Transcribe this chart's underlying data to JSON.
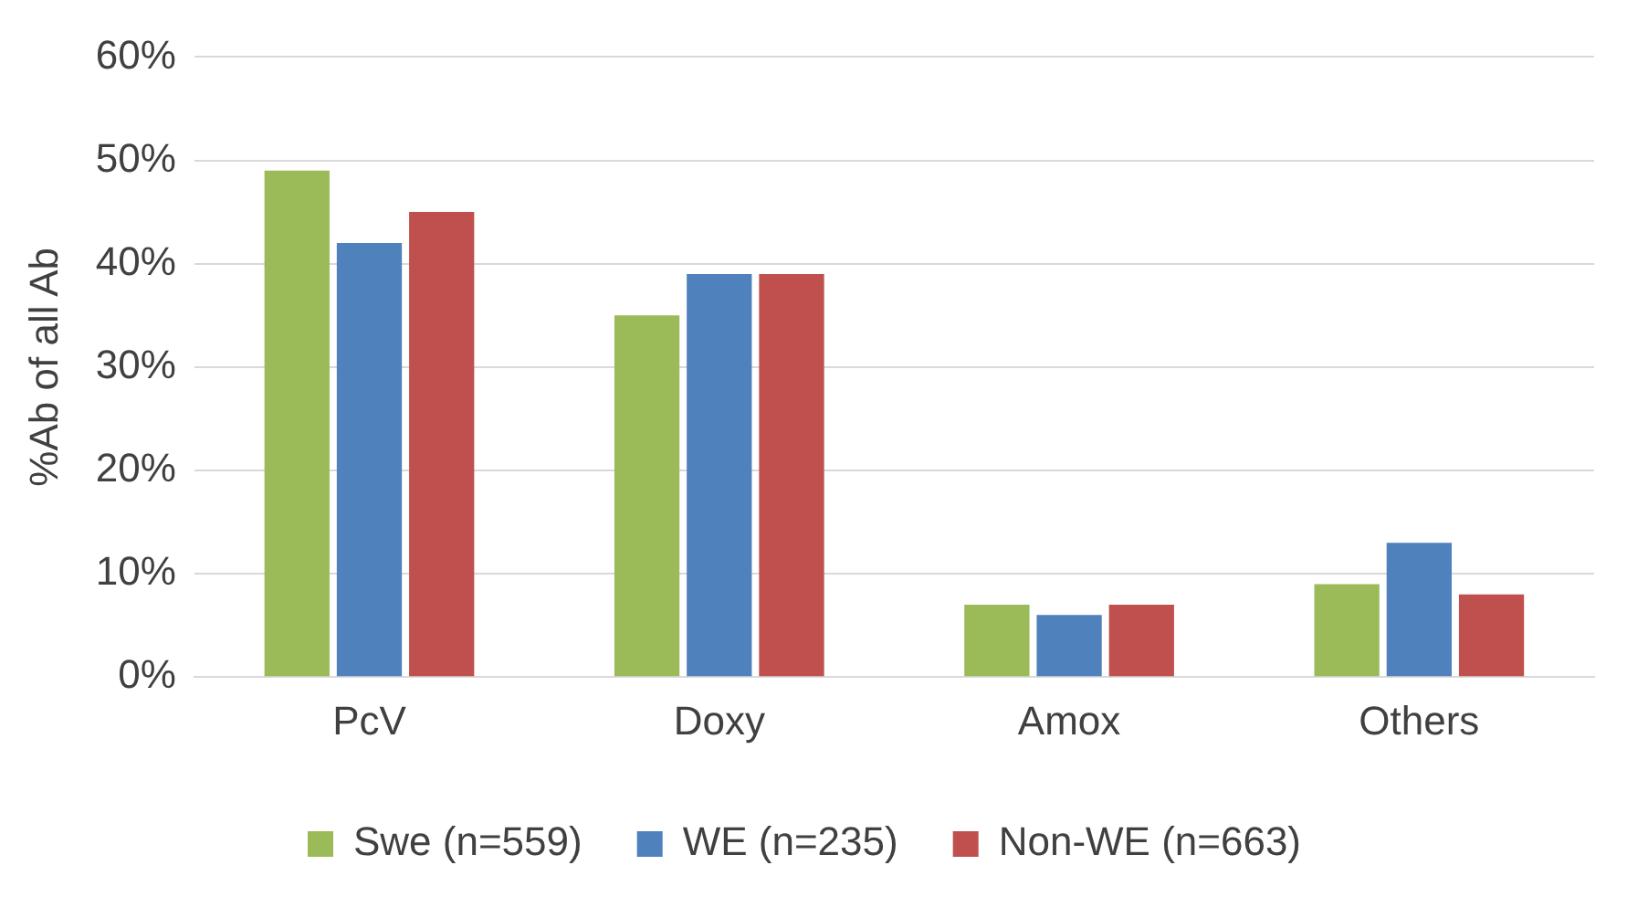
{
  "chart_data": {
    "type": "bar",
    "ylabel": "%Ab of all Ab",
    "categories": [
      "PcV",
      "Doxy",
      "Amox",
      "Others"
    ],
    "series": [
      {
        "name": "Swe (n=559)",
        "color": "#9bbb59",
        "values": [
          49,
          35,
          7,
          9
        ]
      },
      {
        "name": "WE (n=235)",
        "color": "#4f81bd",
        "values": [
          42,
          39,
          6,
          13
        ]
      },
      {
        "name": "Non-WE (n=663)",
        "color": "#c0504d",
        "values": [
          45,
          39,
          7,
          8
        ]
      }
    ],
    "ylim": [
      0,
      60
    ],
    "yticks": [
      {
        "value": 0,
        "label": "0%"
      },
      {
        "value": 10,
        "label": "10%"
      },
      {
        "value": 20,
        "label": "20%"
      },
      {
        "value": 30,
        "label": "30%"
      },
      {
        "value": 40,
        "label": "40%"
      },
      {
        "value": 50,
        "label": "50%"
      },
      {
        "value": 60,
        "label": "60%"
      }
    ],
    "grid": "y",
    "legend": "bottom"
  }
}
